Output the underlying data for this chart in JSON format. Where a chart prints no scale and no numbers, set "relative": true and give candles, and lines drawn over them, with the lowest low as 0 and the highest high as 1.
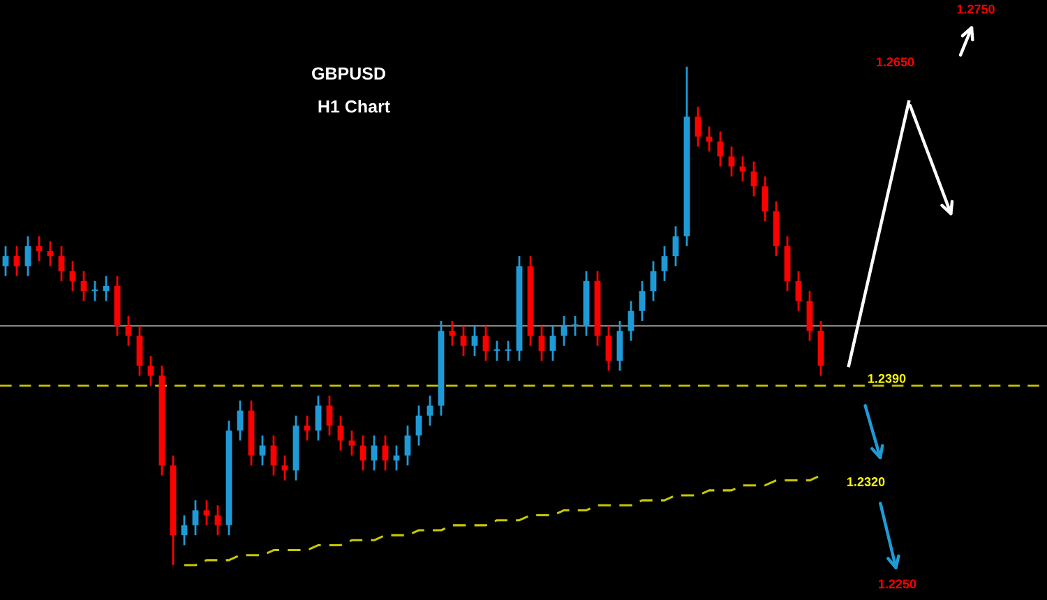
{
  "chart_data": {
    "type": "candlestick",
    "title": "GBPUSD",
    "subtitle": "H1 Chart",
    "relative": true,
    "categories": [
      null,
      null,
      null,
      null,
      null,
      null,
      null,
      null,
      null,
      null,
      null,
      null,
      null,
      null,
      null,
      null,
      null,
      null,
      null,
      null,
      null,
      null,
      null,
      null,
      null,
      null,
      null,
      null,
      null,
      null,
      null,
      null,
      null,
      null,
      null,
      null,
      null,
      null,
      null,
      null,
      null,
      null,
      null,
      null,
      null,
      null,
      null,
      null,
      null,
      null,
      null,
      null,
      null,
      null,
      null,
      null,
      null,
      null,
      null,
      null,
      null,
      null,
      null,
      null,
      null,
      null,
      null,
      null,
      null,
      null,
      null,
      null,
      null,
      null
    ],
    "ohlc": [
      [
        0.6,
        0.64,
        0.58,
        0.62
      ],
      [
        0.62,
        0.64,
        0.58,
        0.6
      ],
      [
        0.6,
        0.66,
        0.58,
        0.64
      ],
      [
        0.64,
        0.66,
        0.61,
        0.63
      ],
      [
        0.63,
        0.65,
        0.6,
        0.62
      ],
      [
        0.62,
        0.64,
        0.57,
        0.59
      ],
      [
        0.59,
        0.61,
        0.55,
        0.57
      ],
      [
        0.57,
        0.59,
        0.53,
        0.55
      ],
      [
        0.55,
        0.57,
        0.53,
        0.55
      ],
      [
        0.55,
        0.58,
        0.53,
        0.56
      ],
      [
        0.56,
        0.58,
        0.46,
        0.48
      ],
      [
        0.48,
        0.5,
        0.44,
        0.46
      ],
      [
        0.46,
        0.48,
        0.38,
        0.4
      ],
      [
        0.4,
        0.42,
        0.36,
        0.38
      ],
      [
        0.38,
        0.4,
        0.18,
        0.2
      ],
      [
        0.2,
        0.22,
        0.0,
        0.06
      ],
      [
        0.06,
        0.1,
        0.04,
        0.08
      ],
      [
        0.08,
        0.13,
        0.06,
        0.11
      ],
      [
        0.11,
        0.13,
        0.08,
        0.1
      ],
      [
        0.1,
        0.12,
        0.06,
        0.08
      ],
      [
        0.08,
        0.29,
        0.06,
        0.27
      ],
      [
        0.27,
        0.33,
        0.25,
        0.31
      ],
      [
        0.31,
        0.33,
        0.2,
        0.22
      ],
      [
        0.22,
        0.26,
        0.2,
        0.24
      ],
      [
        0.24,
        0.26,
        0.18,
        0.2
      ],
      [
        0.2,
        0.22,
        0.17,
        0.19
      ],
      [
        0.19,
        0.3,
        0.17,
        0.28
      ],
      [
        0.28,
        0.3,
        0.25,
        0.27
      ],
      [
        0.27,
        0.34,
        0.25,
        0.32
      ],
      [
        0.32,
        0.34,
        0.26,
        0.28
      ],
      [
        0.28,
        0.3,
        0.23,
        0.25
      ],
      [
        0.25,
        0.27,
        0.22,
        0.24
      ],
      [
        0.24,
        0.26,
        0.19,
        0.21
      ],
      [
        0.21,
        0.26,
        0.19,
        0.24
      ],
      [
        0.24,
        0.26,
        0.19,
        0.21
      ],
      [
        0.21,
        0.24,
        0.19,
        0.22
      ],
      [
        0.22,
        0.28,
        0.2,
        0.26
      ],
      [
        0.26,
        0.32,
        0.24,
        0.3
      ],
      [
        0.3,
        0.34,
        0.28,
        0.32
      ],
      [
        0.32,
        0.49,
        0.3,
        0.47
      ],
      [
        0.47,
        0.49,
        0.44,
        0.46
      ],
      [
        0.46,
        0.48,
        0.42,
        0.44
      ],
      [
        0.44,
        0.48,
        0.42,
        0.46
      ],
      [
        0.46,
        0.48,
        0.41,
        0.43
      ],
      [
        0.43,
        0.45,
        0.41,
        0.43
      ],
      [
        0.43,
        0.45,
        0.41,
        0.43
      ],
      [
        0.43,
        0.62,
        0.41,
        0.6
      ],
      [
        0.6,
        0.62,
        0.44,
        0.46
      ],
      [
        0.46,
        0.48,
        0.41,
        0.43
      ],
      [
        0.43,
        0.48,
        0.41,
        0.46
      ],
      [
        0.46,
        0.5,
        0.44,
        0.48
      ],
      [
        0.48,
        0.5,
        0.46,
        0.48
      ],
      [
        0.48,
        0.59,
        0.46,
        0.57
      ],
      [
        0.57,
        0.59,
        0.44,
        0.46
      ],
      [
        0.46,
        0.48,
        0.39,
        0.41
      ],
      [
        0.41,
        0.49,
        0.39,
        0.47
      ],
      [
        0.47,
        0.53,
        0.45,
        0.51
      ],
      [
        0.51,
        0.57,
        0.49,
        0.55
      ],
      [
        0.55,
        0.61,
        0.53,
        0.59
      ],
      [
        0.59,
        0.64,
        0.57,
        0.62
      ],
      [
        0.62,
        0.68,
        0.6,
        0.66
      ],
      [
        0.66,
        1.0,
        0.64,
        0.9
      ],
      [
        0.9,
        0.92,
        0.84,
        0.86
      ],
      [
        0.86,
        0.88,
        0.83,
        0.85
      ],
      [
        0.85,
        0.87,
        0.8,
        0.82
      ],
      [
        0.82,
        0.84,
        0.78,
        0.8
      ],
      [
        0.8,
        0.82,
        0.77,
        0.79
      ],
      [
        0.79,
        0.81,
        0.74,
        0.76
      ],
      [
        0.76,
        0.78,
        0.69,
        0.71
      ],
      [
        0.71,
        0.73,
        0.62,
        0.64
      ],
      [
        0.64,
        0.66,
        0.55,
        0.57
      ],
      [
        0.57,
        0.59,
        0.51,
        0.53
      ],
      [
        0.53,
        0.55,
        0.45,
        0.47
      ],
      [
        0.47,
        0.49,
        0.38,
        0.4
      ]
    ],
    "colors": [
      "#1e9bd7",
      "#ff0000",
      "#1e9bd7",
      "#ff0000",
      "#ff0000",
      "#ff0000",
      "#ff0000",
      "#ff0000",
      "#1e9bd7",
      "#1e9bd7",
      "#ff0000",
      "#ff0000",
      "#ff0000",
      "#ff0000",
      "#ff0000",
      "#ff0000",
      "#1e9bd7",
      "#1e9bd7",
      "#ff0000",
      "#ff0000",
      "#1e9bd7",
      "#1e9bd7",
      "#ff0000",
      "#1e9bd7",
      "#ff0000",
      "#ff0000",
      "#1e9bd7",
      "#ff0000",
      "#1e9bd7",
      "#ff0000",
      "#ff0000",
      "#ff0000",
      "#ff0000",
      "#1e9bd7",
      "#ff0000",
      "#1e9bd7",
      "#1e9bd7",
      "#1e9bd7",
      "#1e9bd7",
      "#1e9bd7",
      "#ff0000",
      "#ff0000",
      "#1e9bd7",
      "#ff0000",
      "#1e9bd7",
      "#1e9bd7",
      "#1e9bd7",
      "#ff0000",
      "#ff0000",
      "#1e9bd7",
      "#1e9bd7",
      "#1e9bd7",
      "#1e9bd7",
      "#ff0000",
      "#ff0000",
      "#1e9bd7",
      "#1e9bd7",
      "#1e9bd7",
      "#1e9bd7",
      "#1e9bd7",
      "#1e9bd7",
      "#1e9bd7",
      "#ff0000",
      "#ff0000",
      "#ff0000",
      "#ff0000",
      "#ff0000",
      "#ff0000",
      "#ff0000",
      "#ff0000",
      "#ff0000",
      "#ff0000",
      "#ff0000",
      "#ff0000"
    ],
    "series": [
      {
        "type": "line",
        "color": "#c8c800",
        "line_style": "dashed",
        "values": [
          null,
          null,
          null,
          null,
          null,
          null,
          null,
          null,
          null,
          null,
          null,
          null,
          null,
          null,
          null,
          null,
          0.0,
          0.0,
          0.01,
          0.01,
          0.01,
          0.02,
          0.02,
          0.02,
          0.03,
          0.03,
          0.03,
          0.03,
          0.04,
          0.04,
          0.04,
          0.05,
          0.05,
          0.05,
          0.06,
          0.06,
          0.06,
          0.07,
          0.07,
          0.07,
          0.08,
          0.08,
          0.08,
          0.08,
          0.09,
          0.09,
          0.09,
          0.1,
          0.1,
          0.1,
          0.11,
          0.11,
          0.11,
          0.12,
          0.12,
          0.12,
          0.12,
          0.13,
          0.13,
          0.13,
          0.14,
          0.14,
          0.14,
          0.15,
          0.15,
          0.15,
          0.16,
          0.16,
          0.16,
          0.17,
          0.17,
          0.17,
          0.17,
          0.18
        ]
      }
    ],
    "ref_lines": [
      {
        "axis": "y",
        "value": 0.36,
        "color": "#c8c800",
        "line_style": "dashed"
      },
      {
        "axis": "y",
        "value": 0.48,
        "color": "#808080",
        "line_style": "solid"
      }
    ],
    "annotations": [
      "1.2390",
      "1.2320",
      "1.2250",
      "1.2650",
      "1.2750"
    ]
  }
}
